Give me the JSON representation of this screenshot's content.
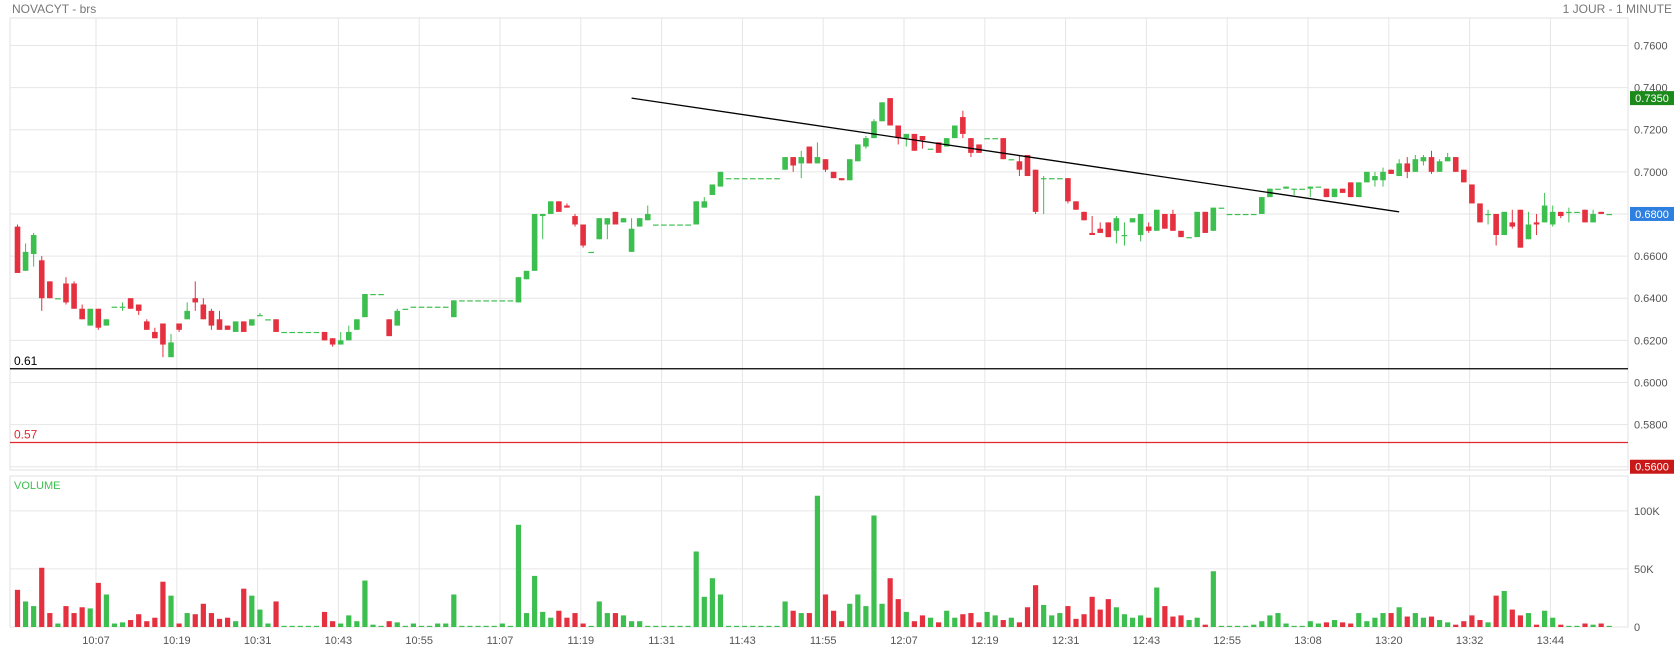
{
  "header": {
    "title": "NOVACYT - brs",
    "timeframe": "1 JOUR - 1 MINUTE"
  },
  "chart_data": {
    "type": "candlestick",
    "price_axis": {
      "ticks": [
        0.56,
        0.58,
        0.6,
        0.62,
        0.64,
        0.66,
        0.68,
        0.7,
        0.72,
        0.74,
        0.76
      ],
      "tick_labels": [
        "0.5600",
        "0.5800",
        "0.6000",
        "0.6200",
        "0.6400",
        "0.6600",
        "0.6800",
        "0.7000",
        "0.7200",
        "0.7400",
        "0.7600"
      ],
      "range": [
        0.5575,
        0.7735
      ]
    },
    "time_axis": {
      "labels": [
        "10:07",
        "10:19",
        "10:31",
        "10:43",
        "10:55",
        "11:07",
        "11:19",
        "11:31",
        "11:43",
        "11:55",
        "12:07",
        "12:19",
        "12:31",
        "12:43",
        "12:55",
        "13:08",
        "13:20",
        "13:32",
        "13:44"
      ]
    },
    "badges": [
      {
        "label": "0.7350",
        "value": 0.735,
        "color": "#1b8a1b"
      },
      {
        "label": "0.6800",
        "value": 0.68,
        "color": "#2d7fe0"
      },
      {
        "label": "0.5600",
        "value": 0.56,
        "color": "#c91818"
      }
    ],
    "levels": [
      {
        "label": "0.61",
        "value": 0.6065,
        "color": "#000000"
      },
      {
        "label": "0.57",
        "value": 0.5715,
        "color": "#e0282f"
      }
    ],
    "trendline": {
      "from": {
        "index": 76,
        "price": 0.735
      },
      "to": {
        "index": 171,
        "price": 0.681
      },
      "color": "#000000"
    },
    "volume_panel": {
      "title": "VOLUME",
      "ticks": [
        0,
        50000,
        100000
      ],
      "tick_labels": [
        "0",
        "50K",
        "100K"
      ],
      "max": 130000
    },
    "colors": {
      "up": "#3dbf4f",
      "down": "#e5303f"
    },
    "candles": [
      [
        0.674,
        0.675,
        0.652,
        0.652,
        32000
      ],
      [
        0.653,
        0.666,
        0.653,
        0.662,
        22000
      ],
      [
        0.661,
        0.671,
        0.655,
        0.67,
        18000
      ],
      [
        0.658,
        0.66,
        0.634,
        0.64,
        51000
      ],
      [
        0.648,
        0.648,
        0.64,
        0.64,
        12000
      ],
      [
        0.64,
        0.64,
        0.64,
        0.64,
        3000
      ],
      [
        0.647,
        0.65,
        0.637,
        0.638,
        18000
      ],
      [
        0.647,
        0.648,
        0.635,
        0.635,
        12000
      ],
      [
        0.635,
        0.637,
        0.63,
        0.63,
        17000
      ],
      [
        0.627,
        0.635,
        0.627,
        0.635,
        16000
      ],
      [
        0.635,
        0.635,
        0.625,
        0.626,
        38000
      ],
      [
        0.627,
        0.63,
        0.627,
        0.63,
        28000
      ],
      [
        0.636,
        0.636,
        0.636,
        0.636,
        3000
      ],
      [
        0.636,
        0.638,
        0.634,
        0.636,
        4000
      ],
      [
        0.64,
        0.64,
        0.635,
        0.635,
        6000
      ],
      [
        0.637,
        0.637,
        0.632,
        0.634,
        11000
      ],
      [
        0.629,
        0.63,
        0.625,
        0.625,
        5000
      ],
      [
        0.624,
        0.626,
        0.621,
        0.621,
        8000
      ],
      [
        0.628,
        0.628,
        0.612,
        0.618,
        39000
      ],
      [
        0.612,
        0.623,
        0.612,
        0.619,
        27000
      ],
      [
        0.628,
        0.628,
        0.624,
        0.625,
        3000
      ],
      [
        0.63,
        0.638,
        0.63,
        0.634,
        12000
      ],
      [
        0.64,
        0.648,
        0.634,
        0.638,
        11000
      ],
      [
        0.637,
        0.64,
        0.63,
        0.63,
        20000
      ],
      [
        0.634,
        0.635,
        0.625,
        0.627,
        12000
      ],
      [
        0.63,
        0.634,
        0.625,
        0.625,
        7000
      ],
      [
        0.627,
        0.627,
        0.625,
        0.625,
        8000
      ],
      [
        0.624,
        0.629,
        0.624,
        0.629,
        5000
      ],
      [
        0.629,
        0.629,
        0.624,
        0.624,
        33000
      ],
      [
        0.627,
        0.63,
        0.627,
        0.63,
        27000
      ],
      [
        0.632,
        0.633,
        0.632,
        0.632,
        15000
      ],
      [
        0.63,
        0.63,
        0.63,
        0.63,
        3000
      ],
      [
        0.63,
        0.63,
        0.624,
        0.624,
        22000
      ],
      [
        0.624,
        0.624,
        0.624,
        0.624,
        1000
      ],
      [
        0.624,
        0.624,
        0.624,
        0.624,
        1000
      ],
      [
        0.624,
        0.624,
        0.624,
        0.624,
        1000
      ],
      [
        0.624,
        0.624,
        0.624,
        0.624,
        1000
      ],
      [
        0.624,
        0.624,
        0.624,
        0.624,
        1000
      ],
      [
        0.624,
        0.624,
        0.62,
        0.62,
        13000
      ],
      [
        0.621,
        0.621,
        0.617,
        0.618,
        5000
      ],
      [
        0.618,
        0.624,
        0.618,
        0.62,
        3000
      ],
      [
        0.62,
        0.627,
        0.62,
        0.624,
        10000
      ],
      [
        0.625,
        0.63,
        0.625,
        0.63,
        5000
      ],
      [
        0.631,
        0.642,
        0.631,
        0.642,
        40000
      ],
      [
        0.642,
        0.642,
        0.642,
        0.642,
        2000
      ],
      [
        0.642,
        0.642,
        0.642,
        0.642,
        1000
      ],
      [
        0.63,
        0.63,
        0.622,
        0.622,
        5000
      ],
      [
        0.627,
        0.635,
        0.627,
        0.634,
        4000
      ],
      [
        0.635,
        0.635,
        0.635,
        0.635,
        1000
      ],
      [
        0.636,
        0.636,
        0.636,
        0.636,
        3000
      ],
      [
        0.636,
        0.636,
        0.636,
        0.636,
        1000
      ],
      [
        0.636,
        0.636,
        0.636,
        0.636,
        1000
      ],
      [
        0.636,
        0.636,
        0.636,
        0.636,
        3000
      ],
      [
        0.636,
        0.636,
        0.636,
        0.636,
        3000
      ],
      [
        0.631,
        0.639,
        0.631,
        0.639,
        28000
      ],
      [
        0.639,
        0.639,
        0.639,
        0.639,
        1000
      ],
      [
        0.639,
        0.639,
        0.639,
        0.639,
        1000
      ],
      [
        0.639,
        0.639,
        0.639,
        0.639,
        1000
      ],
      [
        0.639,
        0.639,
        0.639,
        0.639,
        1000
      ],
      [
        0.639,
        0.639,
        0.639,
        0.639,
        1000
      ],
      [
        0.639,
        0.639,
        0.639,
        0.639,
        3000
      ],
      [
        0.639,
        0.639,
        0.639,
        0.639,
        1000
      ],
      [
        0.638,
        0.65,
        0.638,
        0.65,
        88000
      ],
      [
        0.649,
        0.653,
        0.649,
        0.653,
        12000
      ],
      [
        0.653,
        0.68,
        0.653,
        0.68,
        44000
      ],
      [
        0.679,
        0.68,
        0.668,
        0.68,
        13000
      ],
      [
        0.68,
        0.686,
        0.68,
        0.686,
        8000
      ],
      [
        0.686,
        0.686,
        0.681,
        0.681,
        14000
      ],
      [
        0.684,
        0.685,
        0.683,
        0.683,
        8000
      ],
      [
        0.679,
        0.68,
        0.674,
        0.675,
        12000
      ],
      [
        0.675,
        0.675,
        0.664,
        0.665,
        3000
      ],
      [
        0.662,
        0.662,
        0.662,
        0.662,
        1000
      ],
      [
        0.668,
        0.678,
        0.668,
        0.678,
        22000
      ],
      [
        0.675,
        0.678,
        0.668,
        0.678,
        12000
      ],
      [
        0.681,
        0.681,
        0.675,
        0.675,
        12000
      ],
      [
        0.676,
        0.678,
        0.676,
        0.678,
        10000
      ],
      [
        0.662,
        0.678,
        0.662,
        0.673,
        5000
      ],
      [
        0.674,
        0.678,
        0.674,
        0.678,
        5000
      ],
      [
        0.677,
        0.684,
        0.677,
        0.68,
        1000
      ],
      [
        0.675,
        0.675,
        0.675,
        0.675,
        1000
      ],
      [
        0.675,
        0.675,
        0.675,
        0.675,
        1000
      ],
      [
        0.675,
        0.675,
        0.675,
        0.675,
        1000
      ],
      [
        0.675,
        0.675,
        0.675,
        0.675,
        1000
      ],
      [
        0.675,
        0.675,
        0.675,
        0.675,
        1000
      ],
      [
        0.675,
        0.686,
        0.675,
        0.686,
        65000
      ],
      [
        0.683,
        0.688,
        0.683,
        0.686,
        26000
      ],
      [
        0.689,
        0.694,
        0.689,
        0.694,
        42000
      ],
      [
        0.693,
        0.7,
        0.693,
        0.7,
        28000
      ],
      [
        0.697,
        0.697,
        0.697,
        0.697,
        1000
      ],
      [
        0.697,
        0.697,
        0.697,
        0.697,
        1000
      ],
      [
        0.697,
        0.697,
        0.697,
        0.697,
        1000
      ],
      [
        0.697,
        0.697,
        0.697,
        0.697,
        1000
      ],
      [
        0.697,
        0.697,
        0.697,
        0.697,
        1000
      ],
      [
        0.697,
        0.697,
        0.697,
        0.697,
        1000
      ],
      [
        0.697,
        0.697,
        0.697,
        0.697,
        1000
      ],
      [
        0.701,
        0.707,
        0.701,
        0.707,
        22000
      ],
      [
        0.707,
        0.707,
        0.7,
        0.703,
        14000
      ],
      [
        0.704,
        0.71,
        0.697,
        0.707,
        12000
      ],
      [
        0.712,
        0.712,
        0.704,
        0.704,
        12000
      ],
      [
        0.704,
        0.714,
        0.704,
        0.707,
        113000
      ],
      [
        0.706,
        0.706,
        0.7,
        0.701,
        28000
      ],
      [
        0.7,
        0.7,
        0.697,
        0.697,
        14000
      ],
      [
        0.697,
        0.697,
        0.696,
        0.696,
        5000
      ],
      [
        0.696,
        0.706,
        0.696,
        0.706,
        20000
      ],
      [
        0.705,
        0.713,
        0.705,
        0.713,
        28000
      ],
      [
        0.712,
        0.717,
        0.711,
        0.716,
        18000
      ],
      [
        0.716,
        0.725,
        0.716,
        0.724,
        96000
      ],
      [
        0.724,
        0.733,
        0.724,
        0.733,
        20000
      ],
      [
        0.735,
        0.735,
        0.722,
        0.722,
        42000
      ],
      [
        0.722,
        0.722,
        0.713,
        0.716,
        24000
      ],
      [
        0.716,
        0.718,
        0.712,
        0.718,
        13000
      ],
      [
        0.718,
        0.718,
        0.71,
        0.71,
        5000
      ],
      [
        0.717,
        0.717,
        0.711,
        0.715,
        10000
      ],
      [
        0.711,
        0.711,
        0.711,
        0.711,
        8000
      ],
      [
        0.714,
        0.714,
        0.709,
        0.709,
        4000
      ],
      [
        0.712,
        0.716,
        0.712,
        0.716,
        14000
      ],
      [
        0.716,
        0.722,
        0.716,
        0.722,
        8000
      ],
      [
        0.726,
        0.729,
        0.716,
        0.718,
        11000
      ],
      [
        0.716,
        0.716,
        0.707,
        0.709,
        12000
      ],
      [
        0.713,
        0.713,
        0.709,
        0.709,
        4000
      ],
      [
        0.716,
        0.716,
        0.716,
        0.716,
        13000
      ],
      [
        0.716,
        0.716,
        0.716,
        0.716,
        10000
      ],
      [
        0.716,
        0.716,
        0.706,
        0.706,
        6000
      ],
      [
        0.706,
        0.706,
        0.706,
        0.706,
        8000
      ],
      [
        0.705,
        0.708,
        0.698,
        0.701,
        4000
      ],
      [
        0.708,
        0.708,
        0.698,
        0.698,
        17000
      ],
      [
        0.701,
        0.701,
        0.68,
        0.681,
        36000
      ],
      [
        0.697,
        0.698,
        0.68,
        0.697,
        19000
      ],
      [
        0.697,
        0.697,
        0.697,
        0.697,
        10000
      ],
      [
        0.697,
        0.697,
        0.697,
        0.697,
        12000
      ],
      [
        0.697,
        0.697,
        0.685,
        0.686,
        18000
      ],
      [
        0.686,
        0.686,
        0.682,
        0.682,
        7000
      ],
      [
        0.681,
        0.681,
        0.677,
        0.677,
        11000
      ],
      [
        0.671,
        0.679,
        0.67,
        0.67,
        26000
      ],
      [
        0.673,
        0.676,
        0.671,
        0.671,
        15000
      ],
      [
        0.676,
        0.676,
        0.669,
        0.669,
        24000
      ],
      [
        0.672,
        0.679,
        0.666,
        0.678,
        17000
      ],
      [
        0.67,
        0.676,
        0.665,
        0.67,
        11000
      ],
      [
        0.676,
        0.678,
        0.676,
        0.678,
        8000
      ],
      [
        0.67,
        0.68,
        0.667,
        0.68,
        10000
      ],
      [
        0.674,
        0.676,
        0.671,
        0.672,
        8000
      ],
      [
        0.672,
        0.682,
        0.672,
        0.682,
        34000
      ],
      [
        0.68,
        0.68,
        0.673,
        0.673,
        18000
      ],
      [
        0.68,
        0.682,
        0.672,
        0.672,
        9000
      ],
      [
        0.672,
        0.672,
        0.669,
        0.669,
        10000
      ],
      [
        0.669,
        0.669,
        0.669,
        0.669,
        6000
      ],
      [
        0.669,
        0.681,
        0.669,
        0.681,
        8000
      ],
      [
        0.681,
        0.681,
        0.671,
        0.671,
        2000
      ],
      [
        0.672,
        0.683,
        0.672,
        0.683,
        48000
      ],
      [
        0.683,
        0.683,
        0.683,
        0.683,
        1000
      ],
      [
        0.68,
        0.68,
        0.68,
        0.68,
        1000
      ],
      [
        0.68,
        0.68,
        0.68,
        0.68,
        1000
      ],
      [
        0.68,
        0.68,
        0.68,
        0.68,
        1000
      ],
      [
        0.68,
        0.68,
        0.68,
        0.68,
        2000
      ],
      [
        0.68,
        0.688,
        0.68,
        0.688,
        5000
      ],
      [
        0.688,
        0.692,
        0.688,
        0.692,
        10000
      ],
      [
        0.692,
        0.692,
        0.692,
        0.692,
        12000
      ],
      [
        0.692,
        0.693,
        0.692,
        0.693,
        3000
      ],
      [
        0.692,
        0.692,
        0.689,
        0.692,
        1000
      ],
      [
        0.692,
        0.692,
        0.692,
        0.692,
        1000
      ],
      [
        0.692,
        0.693,
        0.688,
        0.693,
        5000
      ],
      [
        0.693,
        0.693,
        0.693,
        0.693,
        3000
      ],
      [
        0.692,
        0.692,
        0.688,
        0.688,
        4000
      ],
      [
        0.688,
        0.692,
        0.688,
        0.692,
        6000
      ],
      [
        0.692,
        0.692,
        0.69,
        0.69,
        4000
      ],
      [
        0.695,
        0.695,
        0.688,
        0.688,
        3000
      ],
      [
        0.688,
        0.695,
        0.688,
        0.695,
        12000
      ],
      [
        0.695,
        0.7,
        0.695,
        0.7,
        5000
      ],
      [
        0.696,
        0.7,
        0.693,
        0.698,
        8000
      ],
      [
        0.696,
        0.702,
        0.693,
        0.7,
        12000
      ],
      [
        0.701,
        0.701,
        0.699,
        0.699,
        12000
      ],
      [
        0.698,
        0.706,
        0.698,
        0.704,
        17000
      ],
      [
        0.704,
        0.707,
        0.697,
        0.7,
        9000
      ],
      [
        0.7,
        0.708,
        0.7,
        0.706,
        12000
      ],
      [
        0.705,
        0.708,
        0.703,
        0.707,
        8000
      ],
      [
        0.707,
        0.71,
        0.699,
        0.7,
        9000
      ],
      [
        0.7,
        0.706,
        0.7,
        0.705,
        6000
      ],
      [
        0.705,
        0.709,
        0.705,
        0.707,
        4000
      ],
      [
        0.707,
        0.707,
        0.7,
        0.7,
        2000
      ],
      [
        0.701,
        0.701,
        0.695,
        0.695,
        5000
      ],
      [
        0.694,
        0.694,
        0.685,
        0.685,
        10000
      ],
      [
        0.685,
        0.685,
        0.676,
        0.676,
        6000
      ],
      [
        0.68,
        0.682,
        0.675,
        0.68,
        4000
      ],
      [
        0.68,
        0.68,
        0.665,
        0.67,
        27000
      ],
      [
        0.67,
        0.681,
        0.67,
        0.681,
        31000
      ],
      [
        0.676,
        0.682,
        0.673,
        0.674,
        15000
      ],
      [
        0.682,
        0.682,
        0.664,
        0.664,
        10000
      ],
      [
        0.668,
        0.681,
        0.668,
        0.675,
        12000
      ],
      [
        0.676,
        0.68,
        0.67,
        0.675,
        2000
      ],
      [
        0.676,
        0.69,
        0.676,
        0.684,
        14000
      ],
      [
        0.675,
        0.684,
        0.674,
        0.681,
        8000
      ],
      [
        0.681,
        0.681,
        0.678,
        0.679,
        2000
      ],
      [
        0.681,
        0.683,
        0.676,
        0.681,
        1000
      ],
      [
        0.681,
        0.681,
        0.681,
        0.681,
        1000
      ],
      [
        0.682,
        0.682,
        0.676,
        0.676,
        3000
      ],
      [
        0.676,
        0.682,
        0.676,
        0.68,
        2000
      ],
      [
        0.681,
        0.681,
        0.68,
        0.68,
        3000
      ],
      [
        0.68,
        0.68,
        0.68,
        0.68,
        1000
      ]
    ]
  }
}
